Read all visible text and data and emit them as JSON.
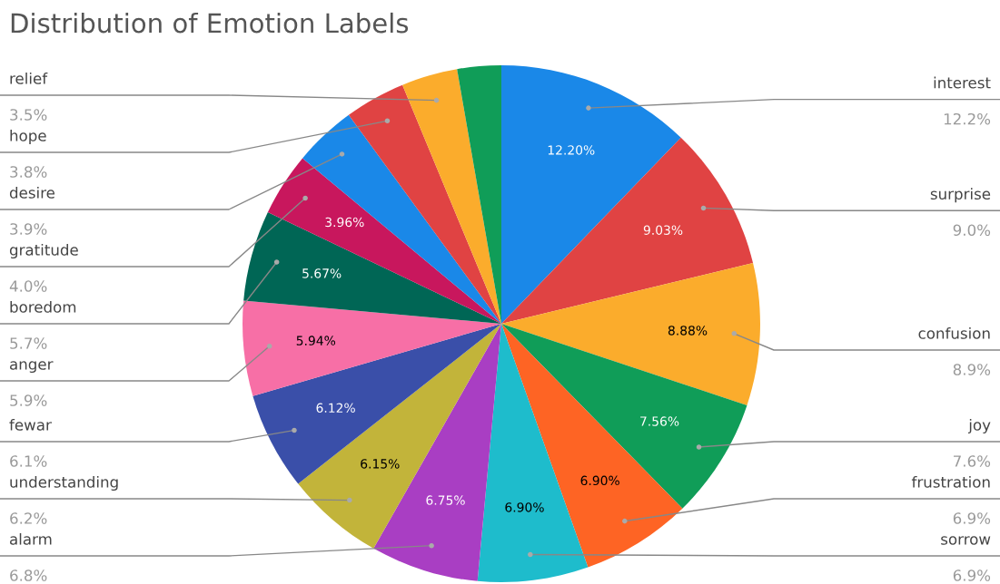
{
  "chart_data": {
    "type": "pie",
    "title": "Distribution of Emotion Labels",
    "categories": [
      "interest",
      "surprise",
      "confusion",
      "joy",
      "frustration",
      "sorrow",
      "alarm",
      "understanding",
      "fewar",
      "anger",
      "boredom",
      "gratitude",
      "desire",
      "hope",
      "relief",
      null
    ],
    "values": [
      12.2,
      9.03,
      8.88,
      7.56,
      6.9,
      6.9,
      6.75,
      6.15,
      6.12,
      5.94,
      5.67,
      3.96,
      3.9,
      3.8,
      3.5,
      2.74
    ],
    "colors": [
      "#1a88e8",
      "#e04343",
      "#fbac2c",
      "#109d58",
      "#fe6424",
      "#1ebccc",
      "#a93ec3",
      "#c2b43a",
      "#3a4fa9",
      "#f76fa6",
      "#006655",
      "#c8175d",
      "#1a88e8",
      "#e04343",
      "#fbac2c",
      "#109d58"
    ],
    "value_labels": [
      "12.20%",
      "9.03%",
      "8.88%",
      "7.56%",
      "6.90%",
      "6.90%",
      "6.75%",
      "6.15%",
      "6.12%",
      "5.94%",
      "5.67%",
      "3.96%",
      null,
      null,
      null,
      null
    ],
    "annotations": [
      "12.2%",
      "9.0%",
      "8.9%",
      "7.6%",
      "6.9%",
      "6.9%",
      "6.8%",
      "6.2%",
      "6.1%",
      "5.9%",
      "5.7%",
      "4.0%",
      "3.9%",
      "3.8%",
      "3.5%"
    ]
  }
}
